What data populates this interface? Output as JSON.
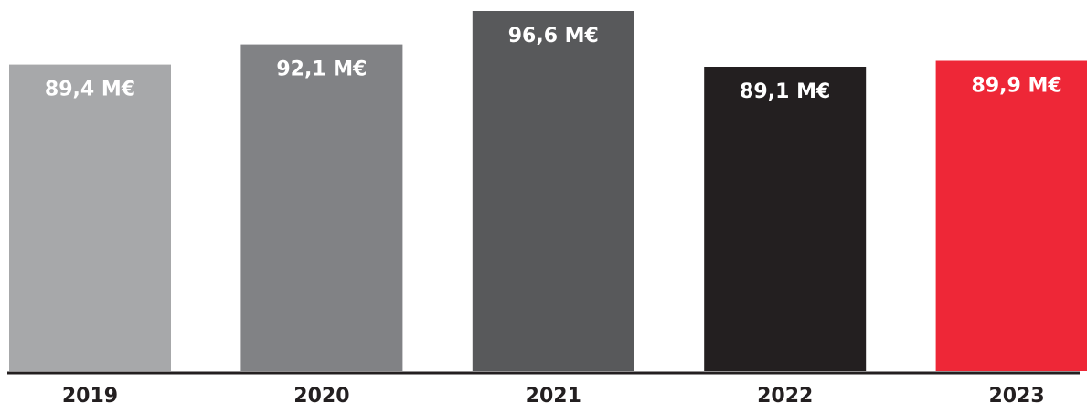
{
  "chart_data": {
    "type": "bar",
    "categories": [
      "2019",
      "2020",
      "2021",
      "2022",
      "2023"
    ],
    "values": [
      89.4,
      92.1,
      96.6,
      89.1,
      89.9
    ],
    "value_labels": [
      "89,4 M€",
      "92,1 M€",
      "96,6 M€",
      "89,1 M€",
      "89,9 M€"
    ],
    "bar_colors": [
      "#a7a8aa",
      "#818285",
      "#58595b",
      "#231f20",
      "#ee2737"
    ],
    "label_colors": [
      "#ffffff",
      "#ffffff",
      "#ffffff",
      "#ffffff",
      "#ffffff"
    ],
    "tick_label_colors": [
      "#231f20",
      "#231f20",
      "#231f20",
      "#231f20",
      "#231f20"
    ],
    "axis_color": "#231f20",
    "title": "",
    "xlabel": "",
    "ylabel": "",
    "grid": false,
    "legend": "none"
  }
}
